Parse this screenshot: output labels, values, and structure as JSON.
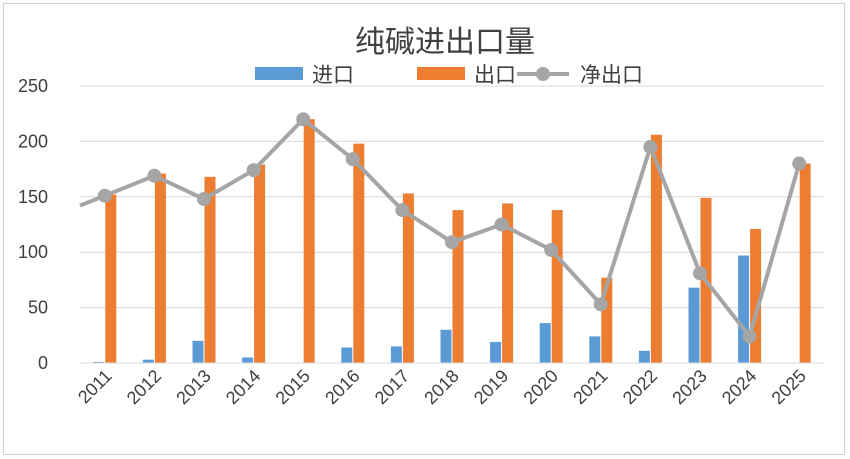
{
  "chart_data": {
    "type": "bar",
    "title": "纯碱进出口量",
    "categories": [
      "2011",
      "2012",
      "2013",
      "2014",
      "2015",
      "2016",
      "2017",
      "2018",
      "2019",
      "2020",
      "2021",
      "2022",
      "2023",
      "2024",
      "2025"
    ],
    "series": [
      {
        "name": "进口",
        "type": "bar",
        "color": "#5b9bd5",
        "values": [
          1,
          3,
          20,
          5,
          0,
          14,
          15,
          30,
          19,
          36,
          24,
          11,
          68,
          97,
          0
        ]
      },
      {
        "name": "出口",
        "type": "bar",
        "color": "#ed7d31",
        "values": [
          152,
          171,
          168,
          179,
          220,
          198,
          153,
          138,
          144,
          138,
          77,
          206,
          149,
          121,
          180
        ]
      },
      {
        "name": "净出口",
        "type": "line",
        "color": "#a5a5a5",
        "values": [
          151,
          169,
          148,
          174,
          220,
          184,
          138,
          109,
          125,
          102,
          53,
          195,
          81,
          24,
          180
        ]
      }
    ],
    "ylim": [
      0,
      250
    ],
    "yticks": [
      "0",
      "50",
      "100",
      "150",
      "200",
      "250"
    ],
    "grid": true,
    "legend": "top-center"
  }
}
